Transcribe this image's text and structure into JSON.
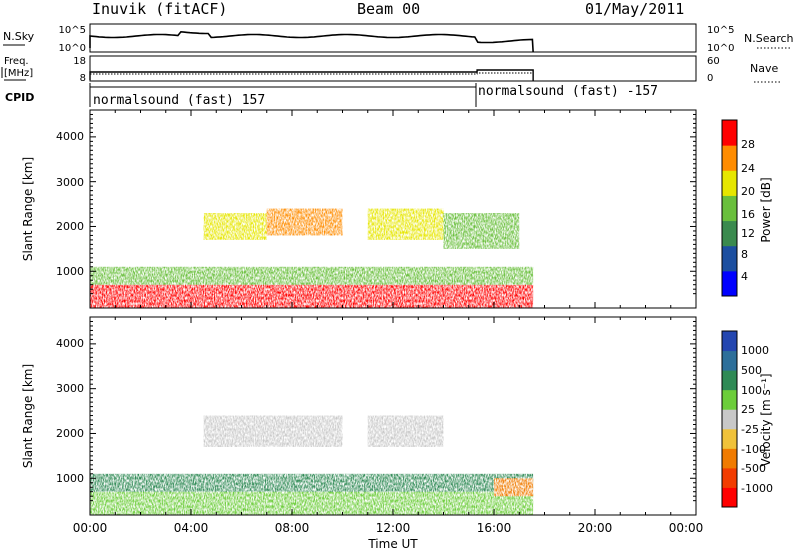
{
  "header": {
    "station": "Inuvik (fitACF)",
    "beam": "Beam 00",
    "date": "01/May/2011"
  },
  "sky_panel": {
    "left_label": "N.Sky",
    "left_ticks": [
      "10^5",
      "10^0"
    ],
    "right_label": "N.Search",
    "right_ticks": [
      "10^5",
      "10^0"
    ]
  },
  "freq_panel": {
    "left_label_line1": "Freq.",
    "left_label_line2": "[MHz]",
    "left_ticks": [
      "18",
      "8"
    ],
    "right_label": "Nave",
    "right_ticks": [
      "60",
      "0"
    ]
  },
  "cpid": {
    "label": "CPID",
    "segments": [
      {
        "start_hr": 0.0,
        "end_hr": 15.33,
        "text": "normalsound (fast) 157"
      },
      {
        "start_hr": 15.33,
        "end_hr": 17.55,
        "text": "normalsound (fast) -157"
      }
    ]
  },
  "time_axis": {
    "label": "Time UT",
    "ticks": [
      "00:00",
      "04:00",
      "08:00",
      "12:00",
      "16:00",
      "20:00",
      "00:00"
    ]
  },
  "power_panel": {
    "ylabel": "Slant Range [km]",
    "yticks": [
      "4000",
      "3000",
      "2000",
      "1000"
    ],
    "colorbar_label": "Power [dB]",
    "colorbar_ticks": [
      "28",
      "24",
      "20",
      "16",
      "12",
      "8",
      "4"
    ],
    "colors": [
      "#0000ff",
      "#1c4fa0",
      "#3a8a4e",
      "#69bf3c",
      "#e6e600",
      "#ff8c00",
      "#ff0000"
    ]
  },
  "velocity_panel": {
    "ylabel": "Slant Range [km]",
    "yticks": [
      "4000",
      "3000",
      "2000",
      "1000"
    ],
    "colorbar_label": "Velocity [m s⁻¹]",
    "colorbar_ticks": [
      "1000",
      "500",
      "100",
      "25",
      "-25",
      "-100",
      "-500",
      "-1000"
    ],
    "colors": [
      "#2446b0",
      "#2d6f9a",
      "#2f8a55",
      "#6ccd3a",
      "#c8c8c8",
      "#f0c23a",
      "#f07b00",
      "#f23c00",
      "#ff0000"
    ]
  },
  "chart_data": {
    "type": "heatmap",
    "x_range_hr": [
      0,
      24
    ],
    "y_range_km": [
      180,
      4600
    ],
    "data_end_hr": 17.55,
    "power_bands_db": [
      {
        "start_hr": 0.0,
        "end_hr": 17.55,
        "range_km": [
          180,
          700
        ],
        "power_db": 24
      },
      {
        "start_hr": 0.0,
        "end_hr": 17.55,
        "range_km": [
          700,
          1100
        ],
        "power_db": 14
      },
      {
        "start_hr": 4.5,
        "end_hr": 7.0,
        "range_km": [
          1700,
          2300
        ],
        "power_db": 16
      },
      {
        "start_hr": 7.0,
        "end_hr": 10.0,
        "range_km": [
          1800,
          2400
        ],
        "power_db": 20
      },
      {
        "start_hr": 11.0,
        "end_hr": 14.0,
        "range_km": [
          1700,
          2400
        ],
        "power_db": 18
      },
      {
        "start_hr": 14.0,
        "end_hr": 17.0,
        "range_km": [
          1500,
          2300
        ],
        "power_db": 12
      }
    ],
    "velocity_bands_ms": [
      {
        "start_hr": 0.0,
        "end_hr": 17.55,
        "range_km": [
          180,
          700
        ],
        "velocity_ms": 50
      },
      {
        "start_hr": 0.0,
        "end_hr": 17.55,
        "range_km": [
          700,
          1100
        ],
        "velocity_ms": 120
      },
      {
        "start_hr": 4.5,
        "end_hr": 10.0,
        "range_km": [
          1700,
          2400
        ],
        "velocity_ms": 0
      },
      {
        "start_hr": 11.0,
        "end_hr": 14.0,
        "range_km": [
          1700,
          2400
        ],
        "velocity_ms": 0
      },
      {
        "start_hr": 16.0,
        "end_hr": 17.55,
        "range_km": [
          600,
          1000
        ],
        "velocity_ms": -200
      }
    ]
  }
}
